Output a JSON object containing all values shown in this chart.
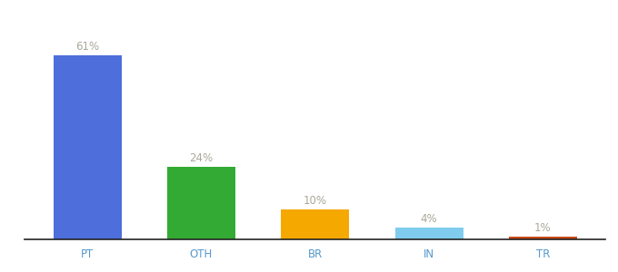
{
  "categories": [
    "PT",
    "OTH",
    "BR",
    "IN",
    "TR"
  ],
  "values": [
    61,
    24,
    10,
    4,
    1
  ],
  "labels": [
    "61%",
    "24%",
    "10%",
    "4%",
    "1%"
  ],
  "bar_colors": [
    "#4d6edb",
    "#33aa33",
    "#f5a800",
    "#80ccee",
    "#c94a1a"
  ],
  "background_color": "#ffffff",
  "label_color": "#aaa899",
  "label_fontsize": 8.5,
  "xlabel_color": "#5599cc",
  "xlabel_fontsize": 8.5,
  "ylim": [
    0,
    72
  ],
  "bar_width": 0.6
}
